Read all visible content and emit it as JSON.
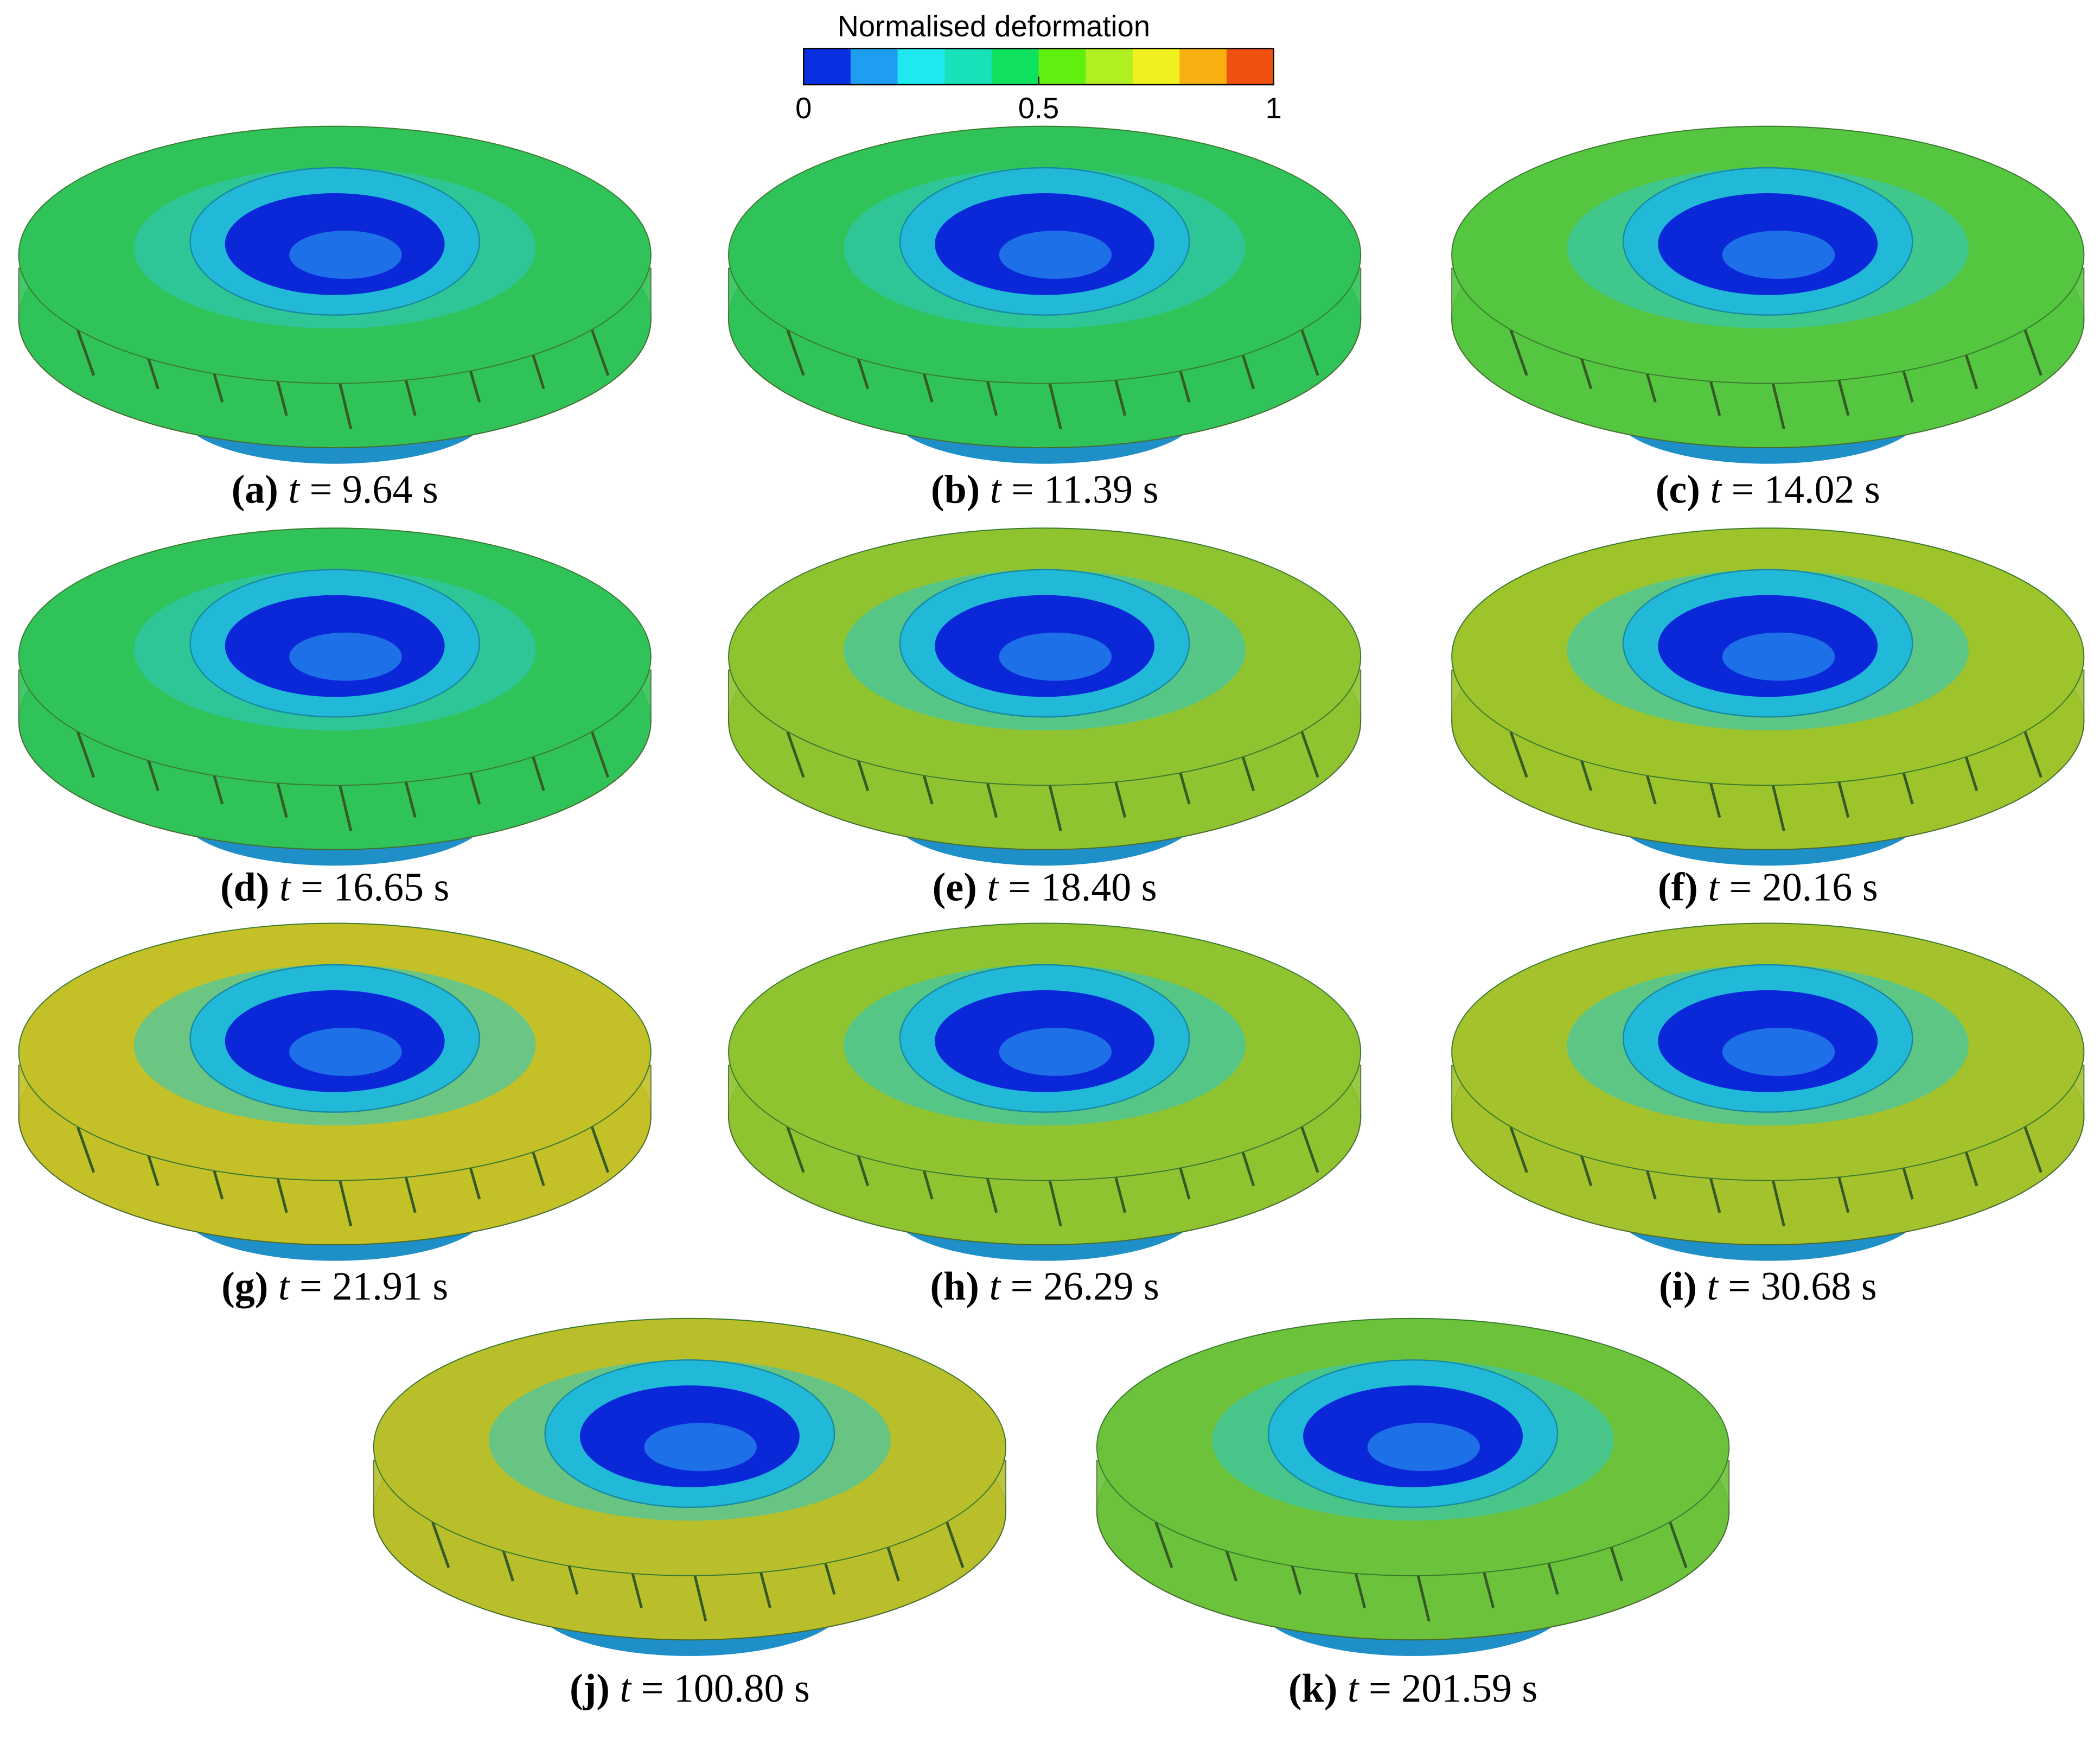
{
  "colorbar": {
    "title": "Normalised deformation",
    "lim": [
      0,
      1
    ],
    "ticks": [
      0,
      0.5,
      1
    ],
    "colors": [
      "#0a2fe0",
      "#1e9ef0",
      "#20e8f0",
      "#18e0b8",
      "#10e060",
      "#60f010",
      "#b0f020",
      "#f0f020",
      "#f8b010",
      "#f05010"
    ]
  },
  "panels": [
    {
      "tag": "(a)",
      "variable": "t",
      "value": "= 9.64 s",
      "color": "#2fc35a"
    },
    {
      "tag": "(b)",
      "variable": "t",
      "value": "= 11.39 s",
      "color": "#2fc35a"
    },
    {
      "tag": "(c)",
      "variable": "t",
      "value": "= 14.02 s",
      "color": "#55c640"
    },
    {
      "tag": "(d)",
      "variable": "t",
      "value": "= 16.65 s",
      "color": "#2fc35a"
    },
    {
      "tag": "(e)",
      "variable": "t",
      "value": "= 18.40 s",
      "color": "#8fc430"
    },
    {
      "tag": "(f)",
      "variable": "t",
      "value": "= 20.16 s",
      "color": "#9ec42c"
    },
    {
      "tag": "(g)",
      "variable": "t",
      "value": "= 21.91 s",
      "color": "#c4c028"
    },
    {
      "tag": "(h)",
      "variable": "t",
      "value": "= 26.29 s",
      "color": "#8fc430"
    },
    {
      "tag": "(i)",
      "variable": "t",
      "value": "= 30.68 s",
      "color": "#a4c22c"
    },
    {
      "tag": "(j)",
      "variable": "t",
      "value": "= 100.80 s",
      "color": "#b8bf2a"
    },
    {
      "tag": "(k)",
      "variable": "t",
      "value": "= 201.59 s",
      "color": "#6cc23a"
    }
  ]
}
